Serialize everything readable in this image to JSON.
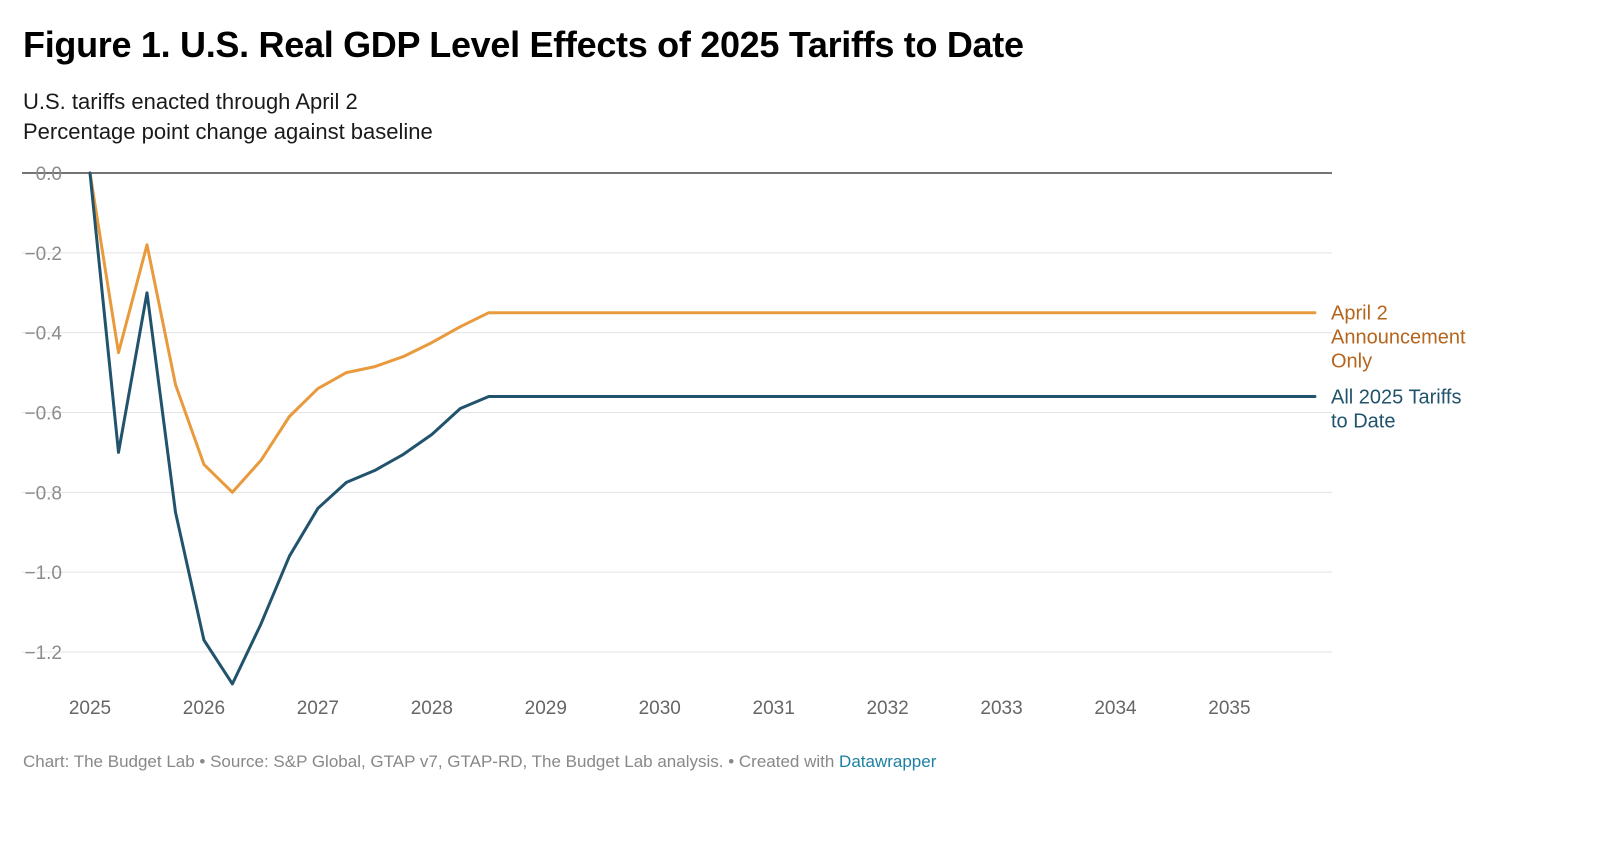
{
  "header": {
    "title": "Figure 1. U.S. Real GDP Level Effects of 2025 Tariffs to Date",
    "subtitle_line1": "U.S. tariffs enacted through April 2",
    "subtitle_line2": "Percentage point change against baseline"
  },
  "footer": {
    "source_text": "Chart: The Budget Lab • Source: S&P Global, GTAP v7, GTAP-RD, The Budget Lab analysis. • Created with ",
    "link_text": "Datawrapper"
  },
  "chart_data": {
    "type": "line",
    "title": "Figure 1. U.S. Real GDP Level Effects of 2025 Tariffs to Date",
    "xlabel": "",
    "ylabel": "Percentage point change against baseline",
    "xlim": [
      2025,
      2035.9
    ],
    "ylim": [
      -1.3,
      0.0
    ],
    "grid": true,
    "legend": "inline-right",
    "y_ticks": [
      0.0,
      -0.2,
      -0.4,
      -0.6,
      -0.8,
      -1.0,
      -1.2
    ],
    "y_tick_labels": [
      "0.0",
      "−0.2",
      "−0.4",
      "−0.6",
      "−0.8",
      "−1.0",
      "−1.2"
    ],
    "x_ticks": [
      2025,
      2026,
      2027,
      2028,
      2029,
      2030,
      2031,
      2032,
      2033,
      2034,
      2035
    ],
    "x_tick_labels": [
      "2025",
      "2026",
      "2027",
      "2028",
      "2029",
      "2030",
      "2031",
      "2032",
      "2033",
      "2034",
      "2035"
    ],
    "series": [
      {
        "name": "April 2 Announcement Only",
        "label_lines": [
          "April 2",
          "Announcement",
          "Only"
        ],
        "color": "#e89a3c",
        "label_color": "#b5651d",
        "x": [
          2025.0,
          2025.25,
          2025.5,
          2025.75,
          2026.0,
          2026.25,
          2026.5,
          2026.75,
          2027.0,
          2027.25,
          2027.5,
          2027.75,
          2028.0,
          2028.25,
          2028.5,
          2035.75
        ],
        "values": [
          0.0,
          -0.45,
          -0.18,
          -0.53,
          -0.73,
          -0.8,
          -0.72,
          -0.61,
          -0.54,
          -0.5,
          -0.485,
          -0.46,
          -0.425,
          -0.385,
          -0.35,
          -0.35
        ]
      },
      {
        "name": "All 2025 Tariffs to Date",
        "label_lines": [
          "All 2025 Tariffs",
          "to Date"
        ],
        "color": "#22536d",
        "label_color": "#22536d",
        "x": [
          2025.0,
          2025.25,
          2025.5,
          2025.75,
          2026.0,
          2026.25,
          2026.5,
          2026.75,
          2027.0,
          2027.25,
          2027.5,
          2027.75,
          2028.0,
          2028.25,
          2028.5,
          2035.75
        ],
        "values": [
          0.0,
          -0.7,
          -0.3,
          -0.85,
          -1.17,
          -1.28,
          -1.13,
          -0.96,
          -0.84,
          -0.775,
          -0.745,
          -0.705,
          -0.655,
          -0.59,
          -0.56,
          -0.56
        ]
      }
    ]
  }
}
